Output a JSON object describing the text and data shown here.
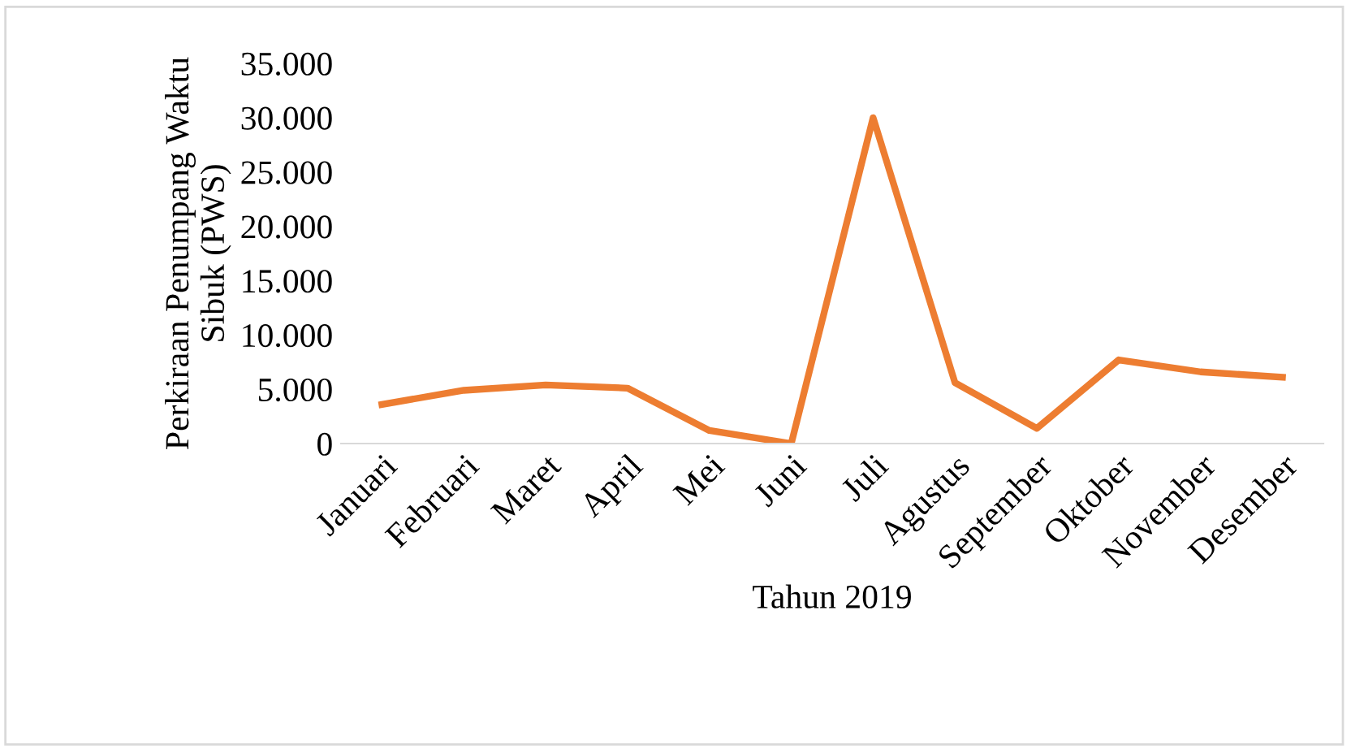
{
  "chart_data": {
    "type": "line",
    "xlabel": "Tahun 2019",
    "ylabel": "Perkiraan Penumpang Waktu\nSibuk (PWS)",
    "categories": [
      "Januari",
      "Februari",
      "Maret",
      "April",
      "Mei",
      "Juni",
      "Juli",
      "Agustus",
      "September",
      "Oktober",
      "November",
      "Desember"
    ],
    "series": [
      {
        "color": "#ed7d31",
        "values": [
          3600,
          4900,
          5400,
          5100,
          1200,
          0,
          30000,
          5600,
          1400,
          7700,
          6600,
          6100
        ]
      }
    ],
    "ylim": [
      0,
      35000
    ],
    "yticks": [
      {
        "value": 0,
        "label": "0"
      },
      {
        "value": 5000,
        "label": "5.000"
      },
      {
        "value": 10000,
        "label": "10.000"
      },
      {
        "value": 15000,
        "label": "15.000"
      },
      {
        "value": 20000,
        "label": "20.000"
      },
      {
        "value": 25000,
        "label": "25.000"
      },
      {
        "value": 30000,
        "label": "30.000"
      },
      {
        "value": 35000,
        "label": "35.000"
      }
    ],
    "grid": false,
    "legend": false
  }
}
